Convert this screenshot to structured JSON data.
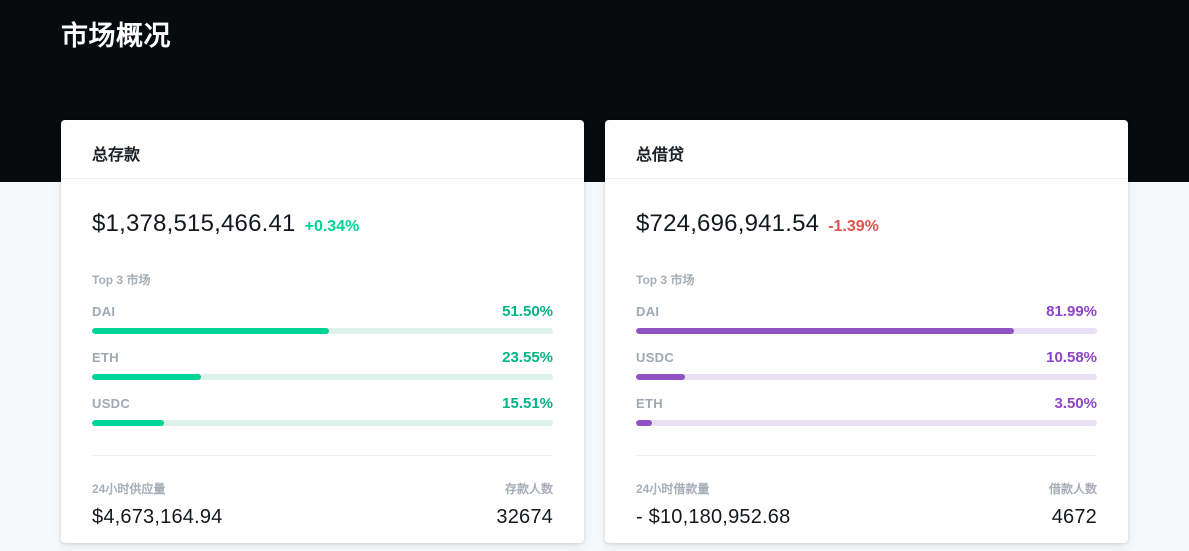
{
  "page": {
    "title": "市场概况",
    "colors": {
      "header_bg": "#080b0e",
      "body_bg": "#f6f8f9",
      "card_bg": "#ffffff",
      "supply_accent": "#00d395",
      "borrow_accent": "#9153c4",
      "positive_change": "#00d395",
      "negative_change": "#e0544e",
      "text_dark": "#14181d",
      "text_gray": "#a6aeb8"
    }
  },
  "cards": [
    {
      "title": "总存款",
      "total": "$1,378,515,466.41",
      "change": "+0.34%",
      "change_direction": "up",
      "top_markets_label": "Top 3 市场",
      "markets": [
        {
          "name": "DAI",
          "pct_label": "51.50%",
          "pct": 51.5
        },
        {
          "name": "ETH",
          "pct_label": "23.55%",
          "pct": 23.55
        },
        {
          "name": "USDC",
          "pct_label": "15.51%",
          "pct": 15.51
        }
      ],
      "stat_left_label": "24小时供应量",
      "stat_left_value": "$4,673,164.94",
      "stat_right_label": "存款人数",
      "stat_right_value": "32674"
    },
    {
      "title": "总借贷",
      "total": "$724,696,941.54",
      "change": "-1.39%",
      "change_direction": "down",
      "top_markets_label": "Top 3 市场",
      "markets": [
        {
          "name": "DAI",
          "pct_label": "81.99%",
          "pct": 81.99
        },
        {
          "name": "USDC",
          "pct_label": "10.58%",
          "pct": 10.58
        },
        {
          "name": "ETH",
          "pct_label": "3.50%",
          "pct": 3.5
        }
      ],
      "stat_left_label": "24小时借款量",
      "stat_left_value": "- $10,180,952.68",
      "stat_right_label": "借款人数",
      "stat_right_value": "4672"
    }
  ]
}
